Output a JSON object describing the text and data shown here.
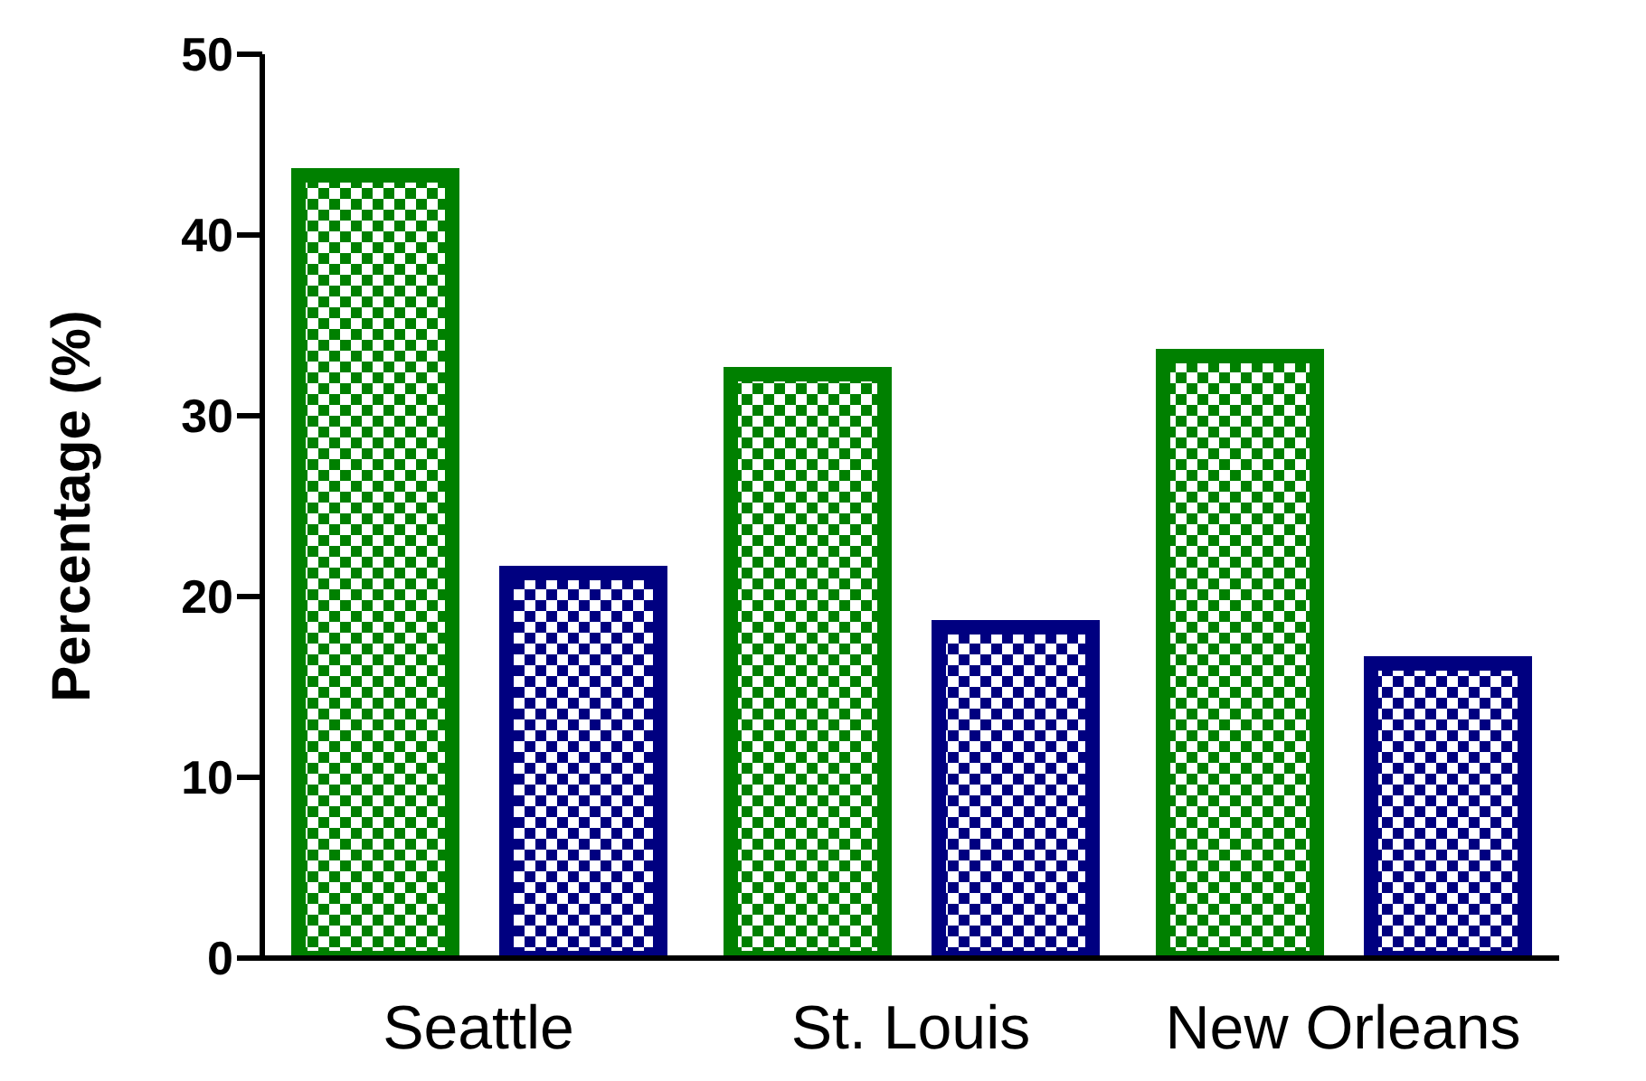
{
  "chart_data": {
    "type": "bar",
    "ylabel": "Percentage (%)",
    "categories": [
      "Seattle",
      "St. Louis",
      "New Orleans"
    ],
    "series": [
      {
        "color": "#008000",
        "values": [
          43.3,
          32.3,
          33.3
        ]
      },
      {
        "color": "#000080",
        "values": [
          21.3,
          18.3,
          16.3
        ]
      }
    ],
    "ylim": [
      0,
      50
    ],
    "yticks": [
      0,
      10,
      20,
      30,
      40,
      50
    ],
    "grid": false,
    "legend": false
  }
}
